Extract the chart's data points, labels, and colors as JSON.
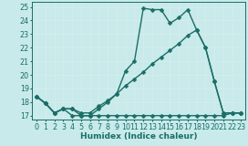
{
  "xlabel": "Humidex (Indice chaleur)",
  "bg_color": "#c8eaea",
  "grid_color": "#e0f0f0",
  "line_color": "#1a6e68",
  "xlim": [
    -0.5,
    23.5
  ],
  "ylim": [
    16.7,
    25.4
  ],
  "yticks": [
    17,
    18,
    19,
    20,
    21,
    22,
    23,
    24,
    25
  ],
  "xticks": [
    0,
    1,
    2,
    3,
    4,
    5,
    6,
    7,
    8,
    9,
    10,
    11,
    12,
    13,
    14,
    15,
    16,
    17,
    18,
    19,
    20,
    21,
    22,
    23
  ],
  "line_main_x": [
    0,
    1,
    2,
    3,
    4,
    5,
    6,
    7,
    8,
    9,
    10,
    11,
    12,
    13,
    14,
    15,
    16,
    17,
    18,
    19,
    20,
    21,
    22,
    23
  ],
  "line_main_y": [
    18.4,
    17.9,
    17.2,
    17.5,
    17.5,
    17.0,
    17.0,
    17.5,
    18.0,
    18.6,
    20.3,
    21.0,
    24.9,
    24.8,
    24.8,
    23.8,
    24.2,
    24.8,
    23.3,
    22.0,
    19.5,
    17.2,
    17.2,
    17.2
  ],
  "line_trend1_x": [
    0,
    1,
    2,
    3,
    4,
    5,
    6,
    7,
    8,
    9,
    10,
    11,
    12,
    13,
    14,
    15,
    16,
    17,
    18,
    19,
    20,
    21,
    22,
    23
  ],
  "line_trend1_y": [
    18.4,
    17.9,
    17.2,
    17.5,
    17.5,
    17.2,
    17.2,
    17.7,
    18.1,
    18.6,
    19.2,
    19.7,
    20.2,
    20.8,
    21.3,
    21.8,
    22.3,
    22.9,
    23.3,
    22.0,
    19.5,
    17.2,
    17.2,
    17.2
  ],
  "line_flat_x": [
    0,
    1,
    2,
    3,
    4,
    5,
    6,
    7,
    8,
    9,
    10,
    11,
    12,
    13,
    14,
    15,
    16,
    17,
    18,
    19,
    20,
    21,
    22,
    23
  ],
  "line_flat_y": [
    18.4,
    17.9,
    17.2,
    17.5,
    17.0,
    17.0,
    17.0,
    17.0,
    17.0,
    17.0,
    17.0,
    17.0,
    17.0,
    17.0,
    17.0,
    17.0,
    17.0,
    17.0,
    17.0,
    17.0,
    17.0,
    17.0,
    17.2,
    17.2
  ],
  "markersize": 2.5,
  "linewidth": 1.0
}
